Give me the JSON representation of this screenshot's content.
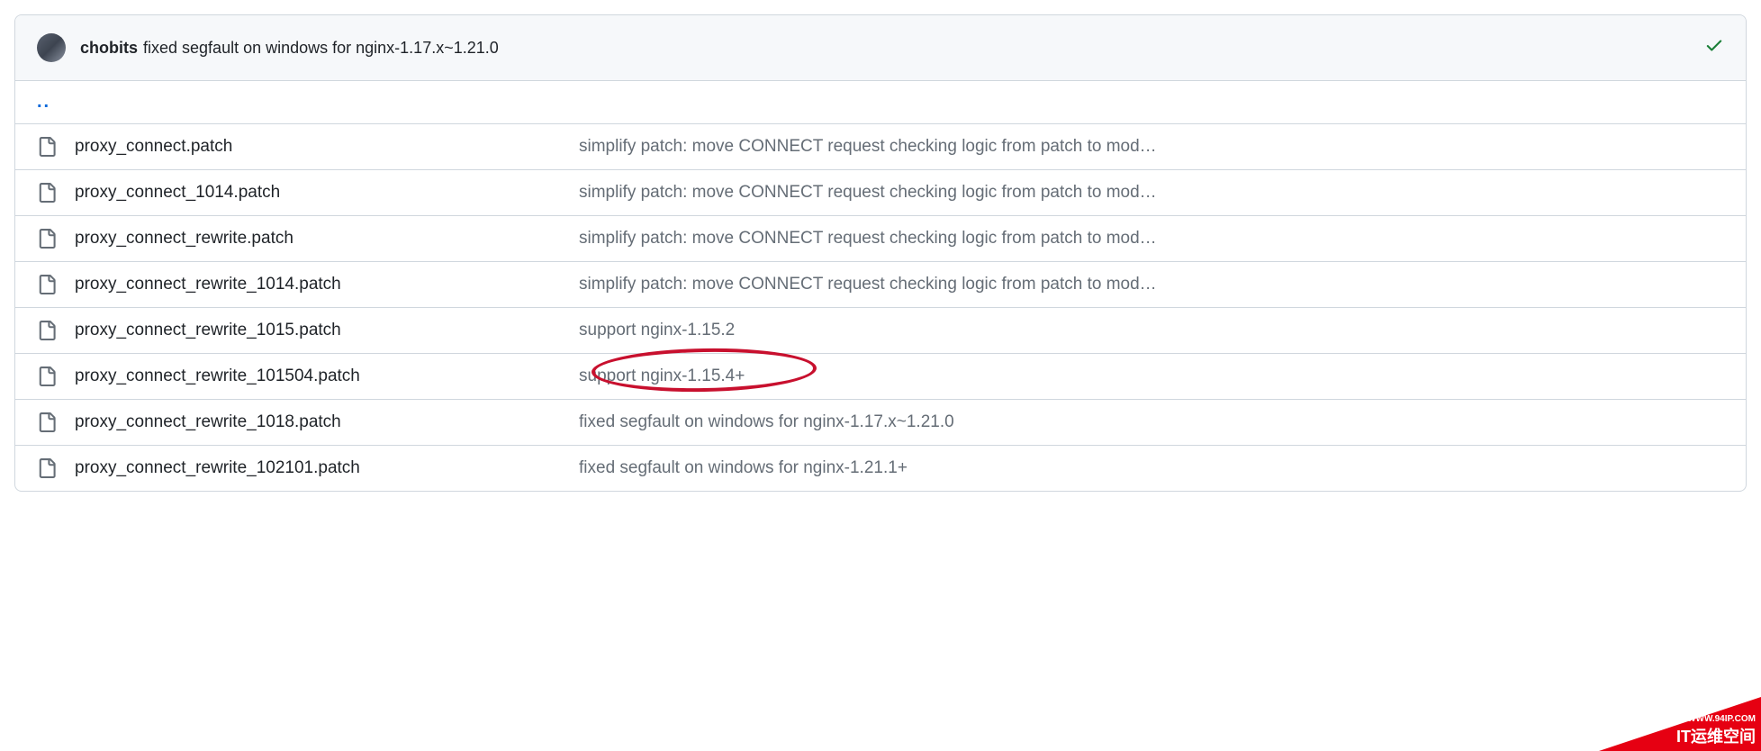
{
  "commit": {
    "author": "chobits",
    "message": "fixed segfault on windows for nginx-1.17.x~1.21.0",
    "status_icon": "check"
  },
  "parent_link": "..",
  "highlight_row_index": 5,
  "files": [
    {
      "name": "proxy_connect.patch",
      "commit_msg": "simplify patch: move CONNECT request checking logic from patch to mod…"
    },
    {
      "name": "proxy_connect_1014.patch",
      "commit_msg": "simplify patch: move CONNECT request checking logic from patch to mod…"
    },
    {
      "name": "proxy_connect_rewrite.patch",
      "commit_msg": "simplify patch: move CONNECT request checking logic from patch to mod…"
    },
    {
      "name": "proxy_connect_rewrite_1014.patch",
      "commit_msg": "simplify patch: move CONNECT request checking logic from patch to mod…"
    },
    {
      "name": "proxy_connect_rewrite_1015.patch",
      "commit_msg": "support nginx-1.15.2"
    },
    {
      "name": "proxy_connect_rewrite_101504.patch",
      "commit_msg": "support nginx-1.15.4+"
    },
    {
      "name": "proxy_connect_rewrite_1018.patch",
      "commit_msg": "fixed segfault on windows for nginx-1.17.x~1.21.0"
    },
    {
      "name": "proxy_connect_rewrite_102101.patch",
      "commit_msg": "fixed segfault on windows for nginx-1.21.1+"
    }
  ],
  "watermark": {
    "url": "WWW.94IP.COM",
    "label": "IT运维空间"
  },
  "colors": {
    "border": "#d0d7de",
    "header_bg": "#f6f8fa",
    "text_primary": "#1f2328",
    "text_muted": "#656d76",
    "link": "#0969da",
    "success": "#1a7f37",
    "highlight": "#c8102e",
    "watermark_bg": "#e60012"
  }
}
